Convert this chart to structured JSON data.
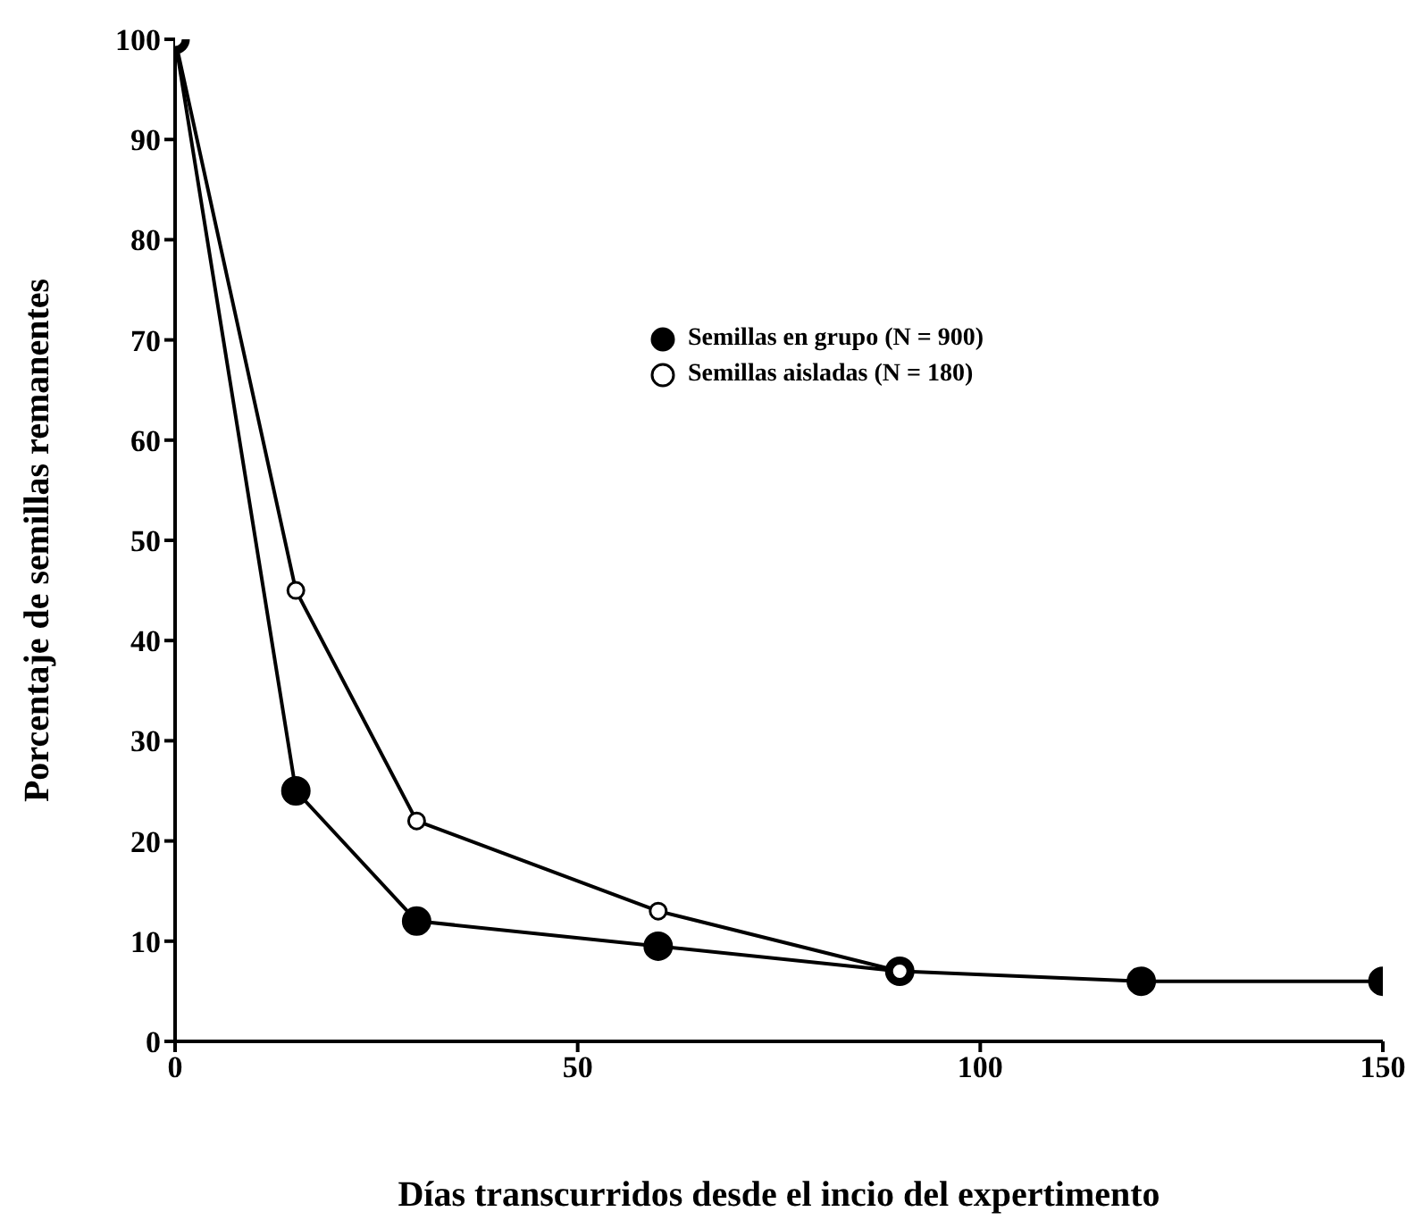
{
  "chart_data": {
    "type": "line",
    "xlabel": "Días transcurridos desde el incio del expertimento",
    "ylabel": "Porcentaje de semillas remanentes",
    "x": [
      0,
      15,
      30,
      60,
      90,
      120,
      150
    ],
    "series": [
      {
        "name": "Semillas en grupo (N = 900)",
        "color": "#000000",
        "values": [
          100,
          25,
          12,
          9.5,
          7,
          6,
          6
        ]
      },
      {
        "name": "Semillas aisladas (N = 180)",
        "color": "#000000",
        "values": [
          100,
          45,
          22,
          13,
          7,
          null,
          null
        ]
      }
    ],
    "xlim": [
      0,
      150
    ],
    "xticks": [
      0,
      50,
      100,
      150
    ],
    "ylim": [
      0,
      100
    ],
    "yticks": [
      0,
      10,
      20,
      30,
      40,
      50,
      60,
      70,
      80,
      90,
      100
    ],
    "legend": "top right",
    "marker": "circle",
    "line_style": "solid"
  }
}
